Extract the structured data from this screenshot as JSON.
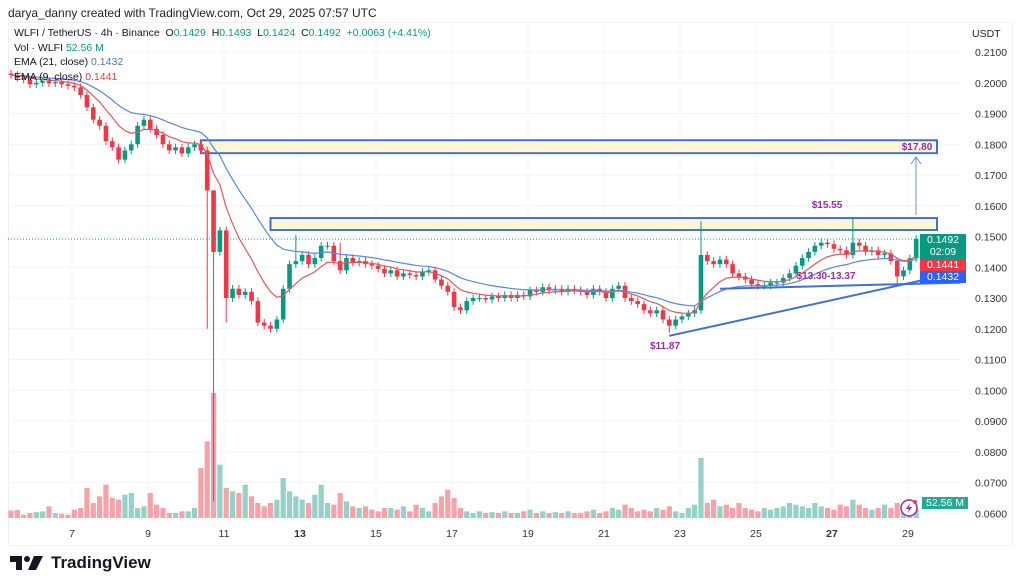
{
  "header": {
    "credit": "darya_danny created with TradingView.com, Oct 29, 2025 07:57 UTC"
  },
  "legend": {
    "symbol": "WLFI / TetherUS · 4h · Binance",
    "o_label": "O",
    "o": "0.1429",
    "h_label": "H",
    "h": "0.1493",
    "l_label": "L",
    "l": "0.1424",
    "c_label": "C",
    "c": "0.1492",
    "change": "+0.0063 (+4.41%)",
    "vol_label": "Vol · WLFI",
    "vol": "52.56 M",
    "ema21_label": "EMA (21, close)",
    "ema21": "0.1432",
    "ema9_label": "EMA (9, close)",
    "ema9": "0.1441"
  },
  "price_axis": {
    "unit": "USDT"
  },
  "tags": {
    "last_price": "0.1492",
    "countdown": "02:09",
    "ema9": "0.1441",
    "ema21": "0.1432",
    "volume": "52.56 M"
  },
  "footer": {
    "brand": "TradingView"
  },
  "colors": {
    "up": "#089981",
    "down": "#f23645",
    "ema9": "#e05a5a",
    "ema21": "#5b86e5",
    "zone_border": "#3f6fd8",
    "zone_fill": "#fff6d5",
    "annotation": "#9c27b0"
  },
  "chart_data": {
    "type": "candlestick",
    "timeframe": "4h",
    "ylim": [
      0.06,
      0.21
    ],
    "yticks": [
      "0.2100",
      "0.2000",
      "0.1900",
      "0.1800",
      "0.1700",
      "0.1600",
      "0.1500",
      "0.1400",
      "0.1300",
      "0.1200",
      "0.1100",
      "0.1000",
      "0.0900",
      "0.0800",
      "0.0700",
      "0.0600"
    ],
    "xticks": [
      {
        "label": "7",
        "bold": false
      },
      {
        "label": "9",
        "bold": false
      },
      {
        "label": "11",
        "bold": false
      },
      {
        "label": "13",
        "bold": true
      },
      {
        "label": "15",
        "bold": false
      },
      {
        "label": "17",
        "bold": false
      },
      {
        "label": "19",
        "bold": false
      },
      {
        "label": "21",
        "bold": false
      },
      {
        "label": "23",
        "bold": false
      },
      {
        "label": "25",
        "bold": false
      },
      {
        "label": "27",
        "bold": true
      },
      {
        "label": "29",
        "bold": false
      }
    ],
    "grid": true,
    "first_open": 0.203,
    "closes": [
      0.2025,
      0.2015,
      0.201,
      0.1995,
      0.2,
      0.2005,
      0.1998,
      0.2002,
      0.1995,
      0.199,
      0.1985,
      0.196,
      0.192,
      0.188,
      0.186,
      0.181,
      0.179,
      0.175,
      0.178,
      0.18,
      0.186,
      0.188,
      0.185,
      0.183,
      0.18,
      0.178,
      0.179,
      0.177,
      0.179,
      0.18,
      0.178,
      0.165,
      0.145,
      0.152,
      0.13,
      0.133,
      0.131,
      0.132,
      0.129,
      0.122,
      0.121,
      0.12,
      0.123,
      0.133,
      0.141,
      0.142,
      0.144,
      0.141,
      0.143,
      0.147,
      0.147,
      0.142,
      0.139,
      0.143,
      0.1415,
      0.142,
      0.141,
      0.1405,
      0.1395,
      0.138,
      0.139,
      0.137,
      0.138,
      0.1375,
      0.137,
      0.1385,
      0.139,
      0.136,
      0.134,
      0.132,
      0.127,
      0.126,
      0.129,
      0.13,
      0.13,
      0.1295,
      0.1305,
      0.13,
      0.131,
      0.13,
      0.131,
      0.1305,
      0.1325,
      0.132,
      0.1335,
      0.1325,
      0.133,
      0.132,
      0.133,
      0.1325,
      0.132,
      0.131,
      0.133,
      0.132,
      0.13,
      0.133,
      0.134,
      0.13,
      0.129,
      0.128,
      0.126,
      0.125,
      0.126,
      0.123,
      0.121,
      0.123,
      0.124,
      0.125,
      0.126,
      0.144,
      0.142,
      0.141,
      0.1425,
      0.141,
      0.138,
      0.137,
      0.136,
      0.1345,
      0.134,
      0.134,
      0.135,
      0.135,
      0.1365,
      0.138,
      0.1405,
      0.143,
      0.145,
      0.147,
      0.148,
      0.1475,
      0.146,
      0.1455,
      0.144,
      0.148,
      0.147,
      0.145,
      0.1455,
      0.144,
      0.1445,
      0.142,
      0.137,
      0.139,
      0.1429,
      0.1492
    ],
    "notable_wicks": [
      {
        "index": 31,
        "low": 0.12
      },
      {
        "index": 32,
        "high": 0.165,
        "low": 0.064
      },
      {
        "index": 34,
        "low": 0.122
      },
      {
        "index": 45,
        "high": 0.1505
      },
      {
        "index": 52,
        "high": 0.148
      },
      {
        "index": 104,
        "low": 0.1187
      },
      {
        "index": 109,
        "high": 0.155
      },
      {
        "index": 133,
        "high": 0.156
      },
      {
        "index": 140,
        "low": 0.1345
      }
    ],
    "volumes_m": [
      45,
      48,
      20,
      30,
      35,
      40,
      70,
      30,
      25,
      20,
      50,
      60,
      180,
      90,
      130,
      200,
      120,
      110,
      140,
      150,
      60,
      70,
      150,
      80,
      60,
      30,
      30,
      40,
      40,
      60,
      300,
      460,
      750,
      320,
      180,
      160,
      150,
      200,
      130,
      90,
      70,
      90,
      110,
      240,
      160,
      130,
      110,
      90,
      140,
      200,
      90,
      80,
      150,
      100,
      70,
      60,
      70,
      50,
      40,
      60,
      60,
      50,
      70,
      40,
      80,
      60,
      40,
      90,
      130,
      170,
      120,
      60,
      40,
      30,
      40,
      30,
      35,
      30,
      40,
      30,
      30,
      40,
      50,
      30,
      40,
      30,
      35,
      30,
      40,
      30,
      30,
      40,
      50,
      30,
      40,
      60,
      50,
      80,
      60,
      40,
      50,
      40,
      60,
      50,
      70,
      40,
      30,
      60,
      80,
      360,
      90,
      110,
      70,
      80,
      60,
      90,
      60,
      50,
      40,
      60,
      50,
      60,
      70,
      90,
      80,
      70,
      60,
      90,
      70,
      60,
      50,
      80,
      70,
      110,
      80,
      60,
      50,
      60,
      80,
      60,
      90,
      70,
      50,
      52.56
    ],
    "indicators": [
      {
        "name": "EMA (21, close)",
        "period": 21
      },
      {
        "name": "EMA (9, close)",
        "period": 9
      }
    ],
    "zones": [
      {
        "label": "$17.80",
        "top": 0.1813,
        "bottom": 0.1771,
        "start_index": 30
      },
      {
        "label": "",
        "top": 0.156,
        "bottom": 0.1521,
        "start_index": 41
      }
    ],
    "annotations": {
      "target": "$17.80",
      "resistance": "$15.55",
      "support_range": "$13.30-13.37",
      "swing_low": "$11.87"
    },
    "trendlines": [
      {
        "from": {
          "index": 104,
          "price": 0.1177
        },
        "to": {
          "index": 150,
          "price": 0.1385
        }
      },
      {
        "from": {
          "index": 112,
          "price": 0.133
        },
        "to": {
          "index": 150,
          "price": 0.135
        }
      }
    ],
    "last_price": 0.1492
  }
}
